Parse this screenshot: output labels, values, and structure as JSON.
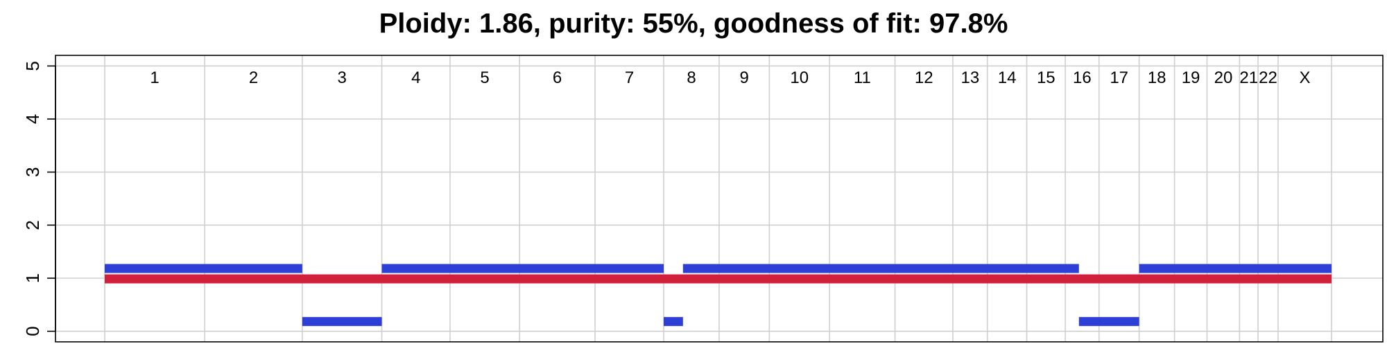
{
  "chart_data": {
    "type": "bar",
    "title": "Ploidy: 1.86, purity: 55%, goodness of fit: 97.8%",
    "xlabel": "",
    "ylabel": "",
    "ylim": [
      -0.2,
      5.2
    ],
    "y_ticks": [
      "0",
      "1",
      "2",
      "3",
      "4",
      "5"
    ],
    "grid": true,
    "chromosomes": [
      {
        "label": "1",
        "start": 0,
        "end": 249
      },
      {
        "label": "2",
        "start": 249,
        "end": 492
      },
      {
        "label": "3",
        "start": 492,
        "end": 690
      },
      {
        "label": "4",
        "start": 690,
        "end": 860
      },
      {
        "label": "5",
        "start": 860,
        "end": 1033
      },
      {
        "label": "6",
        "start": 1033,
        "end": 1221
      },
      {
        "label": "7",
        "start": 1221,
        "end": 1392
      },
      {
        "label": "8",
        "start": 1392,
        "end": 1530
      },
      {
        "label": "9",
        "start": 1530,
        "end": 1655
      },
      {
        "label": "10",
        "start": 1655,
        "end": 1805
      },
      {
        "label": "11",
        "start": 1805,
        "end": 1968
      },
      {
        "label": "12",
        "start": 1968,
        "end": 2112
      },
      {
        "label": "13",
        "start": 2112,
        "end": 2198
      },
      {
        "label": "14",
        "start": 2198,
        "end": 2296
      },
      {
        "label": "15",
        "start": 2296,
        "end": 2392
      },
      {
        "label": "16",
        "start": 2392,
        "end": 2476
      },
      {
        "label": "17",
        "start": 2476,
        "end": 2576
      },
      {
        "label": "18",
        "start": 2576,
        "end": 2664
      },
      {
        "label": "19",
        "start": 2664,
        "end": 2745
      },
      {
        "label": "20",
        "start": 2745,
        "end": 2826
      },
      {
        "label": "21",
        "start": 2826,
        "end": 2872
      },
      {
        "label": "22",
        "start": 2872,
        "end": 2922
      },
      {
        "label": "X",
        "start": 2922,
        "end": 3055
      }
    ],
    "series": [
      {
        "color": "#d21f3c",
        "segments": [
          {
            "start": 0,
            "end": 3055,
            "value": 1
          }
        ]
      },
      {
        "color": "#2e3fd6",
        "segments": [
          {
            "start": 0,
            "end": 492,
            "value": 1
          },
          {
            "start": 492,
            "end": 690,
            "value": 0
          },
          {
            "start": 690,
            "end": 1392,
            "value": 1
          },
          {
            "start": 1392,
            "end": 1440,
            "value": 0
          },
          {
            "start": 1440,
            "end": 2426,
            "value": 1
          },
          {
            "start": 2426,
            "end": 2576,
            "value": 0
          },
          {
            "start": 2576,
            "end": 3055,
            "value": 1
          }
        ]
      }
    ]
  }
}
